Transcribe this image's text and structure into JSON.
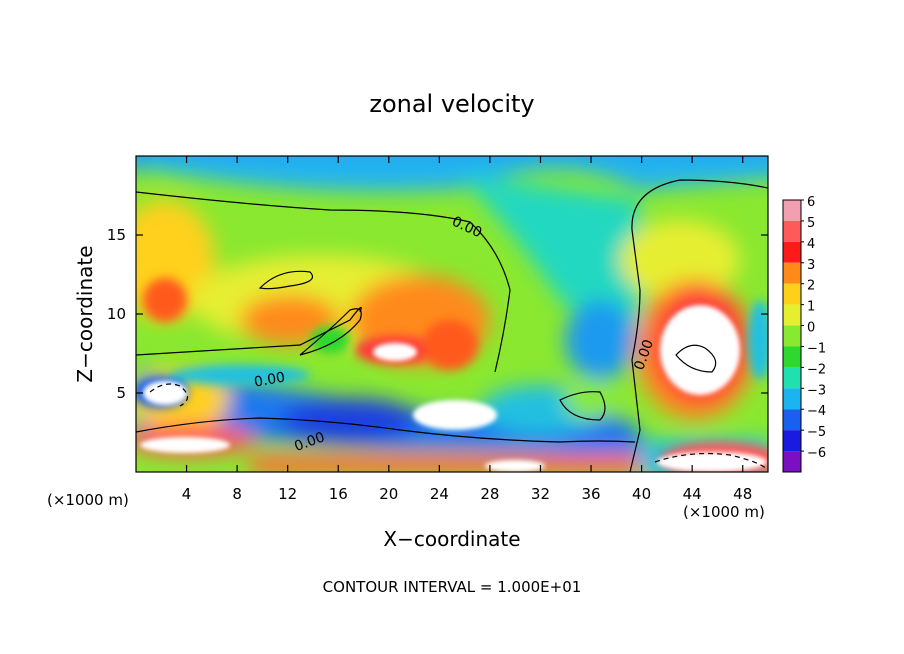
{
  "chart_data": {
    "type": "heatmap",
    "title": "zonal velocity",
    "xlabel": "X−coordinate",
    "ylabel": "Z−coordinate",
    "x_unit_left": "(×1000 m)",
    "x_unit_right": "(×1000 m)",
    "footer": "CONTOUR INTERVAL = 1.000E+01",
    "xlim": [
      0,
      50
    ],
    "ylim": [
      0,
      20
    ],
    "x_ticks": [
      4,
      8,
      12,
      16,
      20,
      24,
      28,
      32,
      36,
      40,
      44,
      48
    ],
    "y_ticks": [
      5,
      10,
      15
    ],
    "colorbar": {
      "labels": [
        "6",
        "5",
        "4",
        "3",
        "2",
        "1",
        "0",
        "−1",
        "−2",
        "−3",
        "−4",
        "−5",
        "−6"
      ],
      "levels": [
        6,
        5,
        4,
        3,
        2,
        1,
        0,
        -1,
        -2,
        -3,
        -4,
        -5,
        -6
      ],
      "colors": [
        "#f2a0b0",
        "#ff5a5a",
        "#ff1a1a",
        "#ff8a1a",
        "#ffd01a",
        "#e6ee30",
        "#88ea30",
        "#2ed82e",
        "#20e0b0",
        "#1ab4f0",
        "#1a60f0",
        "#1a1ae0",
        "#7a10c0"
      ]
    },
    "contour_labels": [
      "0.00",
      "0.00",
      "0.00",
      "0.00"
    ],
    "contour_interval": 10,
    "notes_colors": {
      "saturated_positive": "#ffffff",
      "contour_line": "#000000"
    }
  }
}
